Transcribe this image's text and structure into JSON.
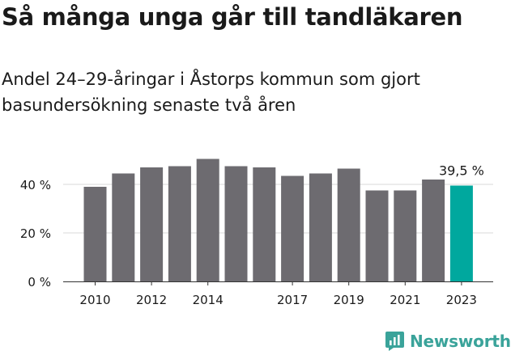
{
  "title": "Så många unga går till tandläkaren",
  "subtitle": "Andel 24–29-åringar i Åstorps kommun som gjort basundersökning senaste två åren",
  "brand": {
    "name": "Newsworthy",
    "icon": "chart-bubble-icon",
    "color": "#3aa39a"
  },
  "chart_data": {
    "type": "bar",
    "categories": [
      "2010",
      "2011",
      "2012",
      "2013",
      "2014",
      "2015",
      "2016",
      "2017",
      "2018",
      "2019",
      "2020",
      "2021",
      "2022",
      "2023"
    ],
    "values": [
      39,
      44.5,
      47,
      47.5,
      50.5,
      47.5,
      47,
      43.5,
      44.5,
      46.5,
      37.5,
      37.5,
      42,
      39.5
    ],
    "x_tick_labels": [
      "2010",
      "",
      "2012",
      "",
      "2014",
      "",
      "",
      "2017",
      "",
      "2019",
      "",
      "2021",
      "",
      "2023"
    ],
    "y_ticks": [
      0,
      20,
      40
    ],
    "y_tick_labels": [
      "0 %",
      "20 %",
      "40 %"
    ],
    "ylim": [
      0,
      54
    ],
    "grid": true,
    "bar_color": "#6d6b70",
    "highlight_color": "#00a89e",
    "highlight_category": "2023",
    "highlight_label": "39,5 %",
    "xlabel": "",
    "ylabel": ""
  }
}
